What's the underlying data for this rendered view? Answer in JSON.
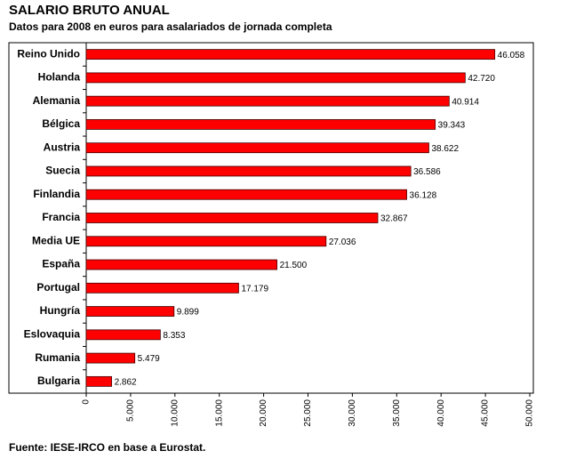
{
  "chart_data": {
    "type": "bar",
    "orientation": "horizontal",
    "title": "SALARIO BRUTO ANUAL",
    "subtitle": "Datos para 2008 en euros para asalariados de jornada completa",
    "source": "Fuente: IESE-IRCO en base a Eurostat.",
    "categories": [
      "Reino Unido",
      "Holanda",
      "Alemania",
      "Bélgica",
      "Austria",
      "Suecia",
      "Finlandia",
      "Francia",
      "Media UE",
      "España",
      "Portugal",
      "Hungría",
      "Eslovaquia",
      "Rumania",
      "Bulgaria"
    ],
    "values": [
      46058,
      42720,
      40914,
      39343,
      38622,
      36586,
      36128,
      32867,
      27036,
      21500,
      17179,
      9899,
      8353,
      5479,
      2862
    ],
    "value_labels": [
      "46.058",
      "42.720",
      "40.914",
      "39.343",
      "38.622",
      "36.586",
      "36.128",
      "32.867",
      "27.036",
      "21.500",
      "17.179",
      "9.899",
      "8.353",
      "5.479",
      "2.862"
    ],
    "color": "#ff0000",
    "xlim": [
      0,
      50000
    ],
    "xticks": [
      0,
      {
        "value": 5000,
        "label": "5.000"
      },
      {
        "value": 10000,
        "label": "10.000"
      },
      {
        "value": 15000,
        "label": "15.000"
      },
      {
        "value": 20000,
        "label": "20.000"
      },
      {
        "value": 25000,
        "label": "25.000"
      },
      {
        "value": 30000,
        "label": "30.000"
      },
      {
        "value": 35000,
        "label": "35.000"
      },
      {
        "value": 40000,
        "label": "40.000"
      },
      {
        "value": 45000,
        "label": "45.000"
      },
      {
        "value": 50000,
        "label": "50.000"
      }
    ],
    "grid": false
  }
}
